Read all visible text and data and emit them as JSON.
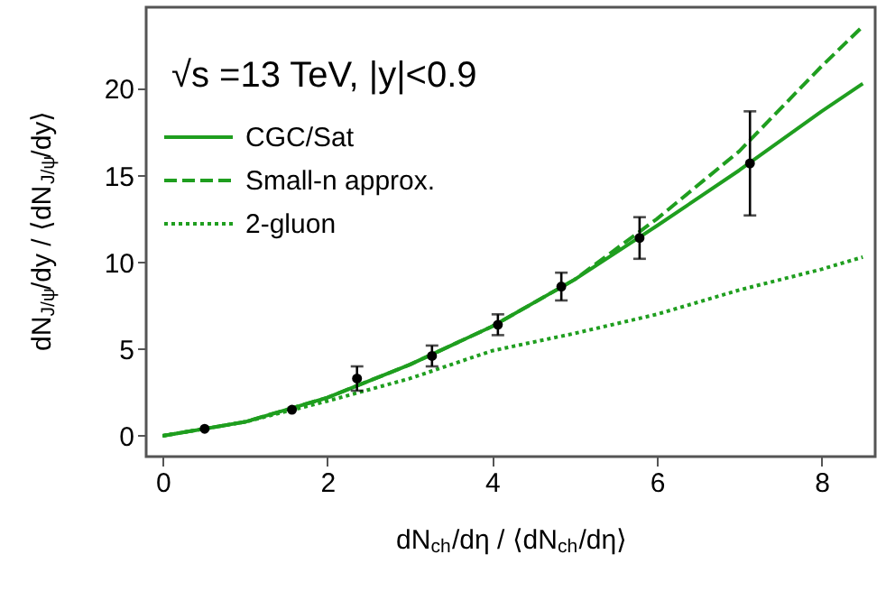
{
  "chart_data": {
    "type": "line",
    "xlabel": "dN$_{ch}$/dη / ⟨dN$_{ch}$/dη⟩",
    "ylabel": "dN$_{J/ψ}$/dy / ⟨dN$_{J/ψ}$/dy⟩",
    "annotations": [
      "√s =13 TeV, |y|<0.9"
    ],
    "series": [
      {
        "name": "CGC/Sat",
        "line_style": "solid",
        "color": "#1f9e1f",
        "x": [
          0,
          1,
          2,
          3,
          4,
          5,
          6,
          7,
          8,
          8.5
        ],
        "values": [
          0,
          0.8,
          2.2,
          4.1,
          6.3,
          9.0,
          12.1,
          15.3,
          18.7,
          20.3
        ]
      },
      {
        "name": "Small-n approx.",
        "line_style": "dashed",
        "color": "#1f9e1f",
        "x": [
          0,
          1,
          2,
          3,
          4,
          5,
          6,
          7,
          8,
          8.5
        ],
        "values": [
          0,
          0.8,
          2.2,
          4.1,
          6.3,
          9.0,
          12.5,
          16.4,
          21.3,
          23.6
        ]
      },
      {
        "name": "2-gluon",
        "line_style": "dotted",
        "color": "#1f9e1f",
        "x": [
          0,
          1,
          2,
          3,
          4,
          5,
          6,
          7,
          8,
          8.5
        ],
        "values": [
          0,
          0.8,
          2.0,
          3.3,
          4.9,
          5.9,
          7.0,
          8.4,
          9.6,
          10.3
        ]
      },
      {
        "type": "scatter",
        "marker": "circle",
        "color": "#000000",
        "x": [
          0.51,
          1.57,
          2.36,
          3.27,
          4.07,
          4.84,
          5.79,
          7.13
        ],
        "values": [
          0.4,
          1.5,
          3.3,
          4.6,
          6.4,
          8.6,
          11.4,
          15.7
        ],
        "errors": [
          null,
          null,
          0.7,
          0.6,
          0.6,
          0.8,
          1.2,
          3.0
        ]
      }
    ],
    "xlim": [
      -0.2,
      8.65
    ],
    "ylim": [
      -1.2,
      24.7
    ],
    "xticks": [
      0,
      2,
      4,
      6,
      8
    ],
    "yticks": [
      0,
      5,
      10,
      15,
      20
    ],
    "grid": false,
    "legend": "top left"
  }
}
